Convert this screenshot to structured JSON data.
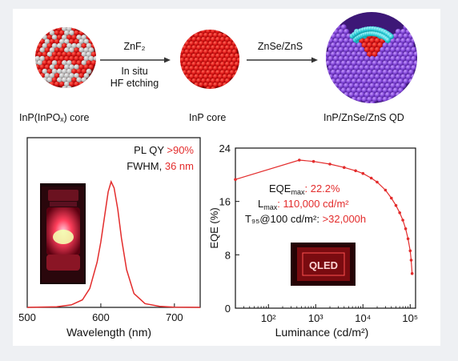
{
  "schematic": {
    "labels": {
      "core1": "InP(InPOₓ) core",
      "core2": "InP core",
      "core3": "InP/ZnSe/ZnS QD"
    },
    "arrow1": {
      "top": "ZnF₂",
      "bottom_line1": "In situ",
      "bottom_line2": "HF etching"
    },
    "arrow2": {
      "top": "ZnSe/ZnS"
    },
    "colors": {
      "red": "#e41f1f",
      "gray": "#b9b9b9",
      "cyan": "#22c4cf",
      "purple": "#7a3fd0",
      "arrow": "#333333"
    }
  },
  "pl_panel": {
    "ann1_label": "PL QY ",
    "ann1_value": ">90%",
    "ann2_label": "FWHM, ",
    "ann2_value": "36 nm",
    "xlabel": "Wavelength (nm)",
    "ticks": [
      "500",
      "600",
      "700"
    ],
    "vial_icon": "glowing-vial-photo",
    "accent": "#e32c2c"
  },
  "eqe_panel": {
    "ylabel": "EQE (%)",
    "xlabel": "Luminance (cd/m²)",
    "yticks": [
      "0",
      "8",
      "16",
      "24"
    ],
    "xticks": [
      "10²",
      "10³",
      "10⁴",
      "10⁵"
    ],
    "ann1_label": "EQE",
    "ann1_sub": "max",
    "ann1_value": ": 22.2%",
    "ann2_label": "L",
    "ann2_sub": "max",
    "ann2_value": ": 110,000 cd/m²",
    "ann3_label": "T₉₅@100 cd/m²: ",
    "ann3_value": ">32,000h",
    "device_text": "QLED",
    "accent": "#e32c2c"
  },
  "chart_data": [
    {
      "type": "line",
      "title": "",
      "xlabel": "Wavelength (nm)",
      "ylabel": "",
      "xlim": [
        500,
        735
      ],
      "peak_x": 614,
      "fwhm": 36,
      "series": [
        {
          "x": [
            500,
            540,
            560,
            575,
            585,
            595,
            600,
            605,
            610,
            614,
            618,
            623,
            628,
            635,
            645,
            660,
            680,
            700,
            735
          ],
          "values": [
            0.0,
            0.005,
            0.02,
            0.06,
            0.15,
            0.36,
            0.52,
            0.72,
            0.92,
            1.0,
            0.95,
            0.78,
            0.55,
            0.3,
            0.11,
            0.03,
            0.008,
            0.002,
            0.0
          ]
        }
      ]
    },
    {
      "type": "line",
      "title": "",
      "xlabel": "Luminance (cd/m²)",
      "ylabel": "EQE (%)",
      "xscale": "log",
      "ylim": [
        0,
        24
      ],
      "xlim": [
        20,
        130000
      ],
      "series": [
        {
          "x": [
            20,
            450,
            900,
            2000,
            4000,
            7000,
            10000,
            15000,
            20000,
            30000,
            40000,
            50000,
            60000,
            70000,
            80000,
            90000,
            100000,
            105000,
            110000
          ],
          "values": [
            19.3,
            22.2,
            22.0,
            21.6,
            21.1,
            20.6,
            20.2,
            19.5,
            18.9,
            17.7,
            16.5,
            15.4,
            14.3,
            13.2,
            11.9,
            10.4,
            8.6,
            7.2,
            5.2
          ]
        }
      ]
    }
  ]
}
